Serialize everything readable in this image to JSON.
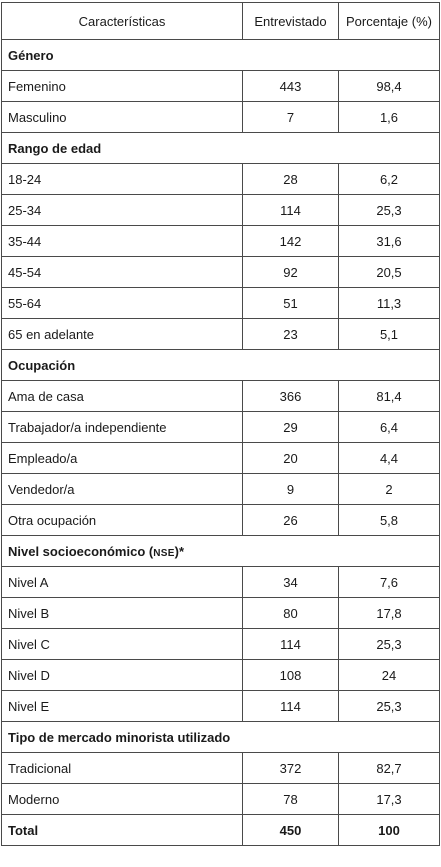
{
  "headers": {
    "col1": "Características",
    "col2": "Entrevistado",
    "col3": "Porcentaje (%)"
  },
  "sections": {
    "genero": {
      "title": "Género",
      "rows": [
        {
          "label": "Femenino",
          "n": "443",
          "pct": "98,4"
        },
        {
          "label": "Masculino",
          "n": "7",
          "pct": "1,6"
        }
      ]
    },
    "edad": {
      "title": "Rango de edad",
      "rows": [
        {
          "label": "18-24",
          "n": "28",
          "pct": "6,2"
        },
        {
          "label": "25-34",
          "n": "114",
          "pct": "25,3"
        },
        {
          "label": "35-44",
          "n": "142",
          "pct": "31,6"
        },
        {
          "label": "45-54",
          "n": "92",
          "pct": "20,5"
        },
        {
          "label": "55-64",
          "n": "51",
          "pct": "11,3"
        },
        {
          "label": "65 en adelante",
          "n": "23",
          "pct": "5,1"
        }
      ]
    },
    "ocupacion": {
      "title": "Ocupación",
      "rows": [
        {
          "label": "Ama de casa",
          "n": "366",
          "pct": "81,4"
        },
        {
          "label": "Trabajador/a independiente",
          "n": "29",
          "pct": "6,4"
        },
        {
          "label": "Empleado/a",
          "n": "20",
          "pct": "4,4"
        },
        {
          "label": "Vendedor/a",
          "n": "9",
          "pct": "2"
        },
        {
          "label": "Otra ocupación",
          "n": "26",
          "pct": "5,8"
        }
      ]
    },
    "nse": {
      "title": "Nivel socioeconómico (",
      "title_abbr": "NSE",
      "title_suffix": ")*",
      "rows": [
        {
          "label": "Nivel A",
          "n": "34",
          "pct": "7,6"
        },
        {
          "label": "Nivel B",
          "n": "80",
          "pct": "17,8"
        },
        {
          "label": "Nivel C",
          "n": "114",
          "pct": "25,3"
        },
        {
          "label": "Nivel D",
          "n": "108",
          "pct": "24"
        },
        {
          "label": "Nivel E",
          "n": "114",
          "pct": "25,3"
        }
      ]
    },
    "mercado": {
      "title": "Tipo de mercado minorista utilizado",
      "rows": [
        {
          "label": "Tradicional",
          "n": "372",
          "pct": "82,7"
        },
        {
          "label": "Moderno",
          "n": "78",
          "pct": "17,3"
        }
      ]
    }
  },
  "total": {
    "label": "Total",
    "n": "450",
    "pct": "100"
  }
}
